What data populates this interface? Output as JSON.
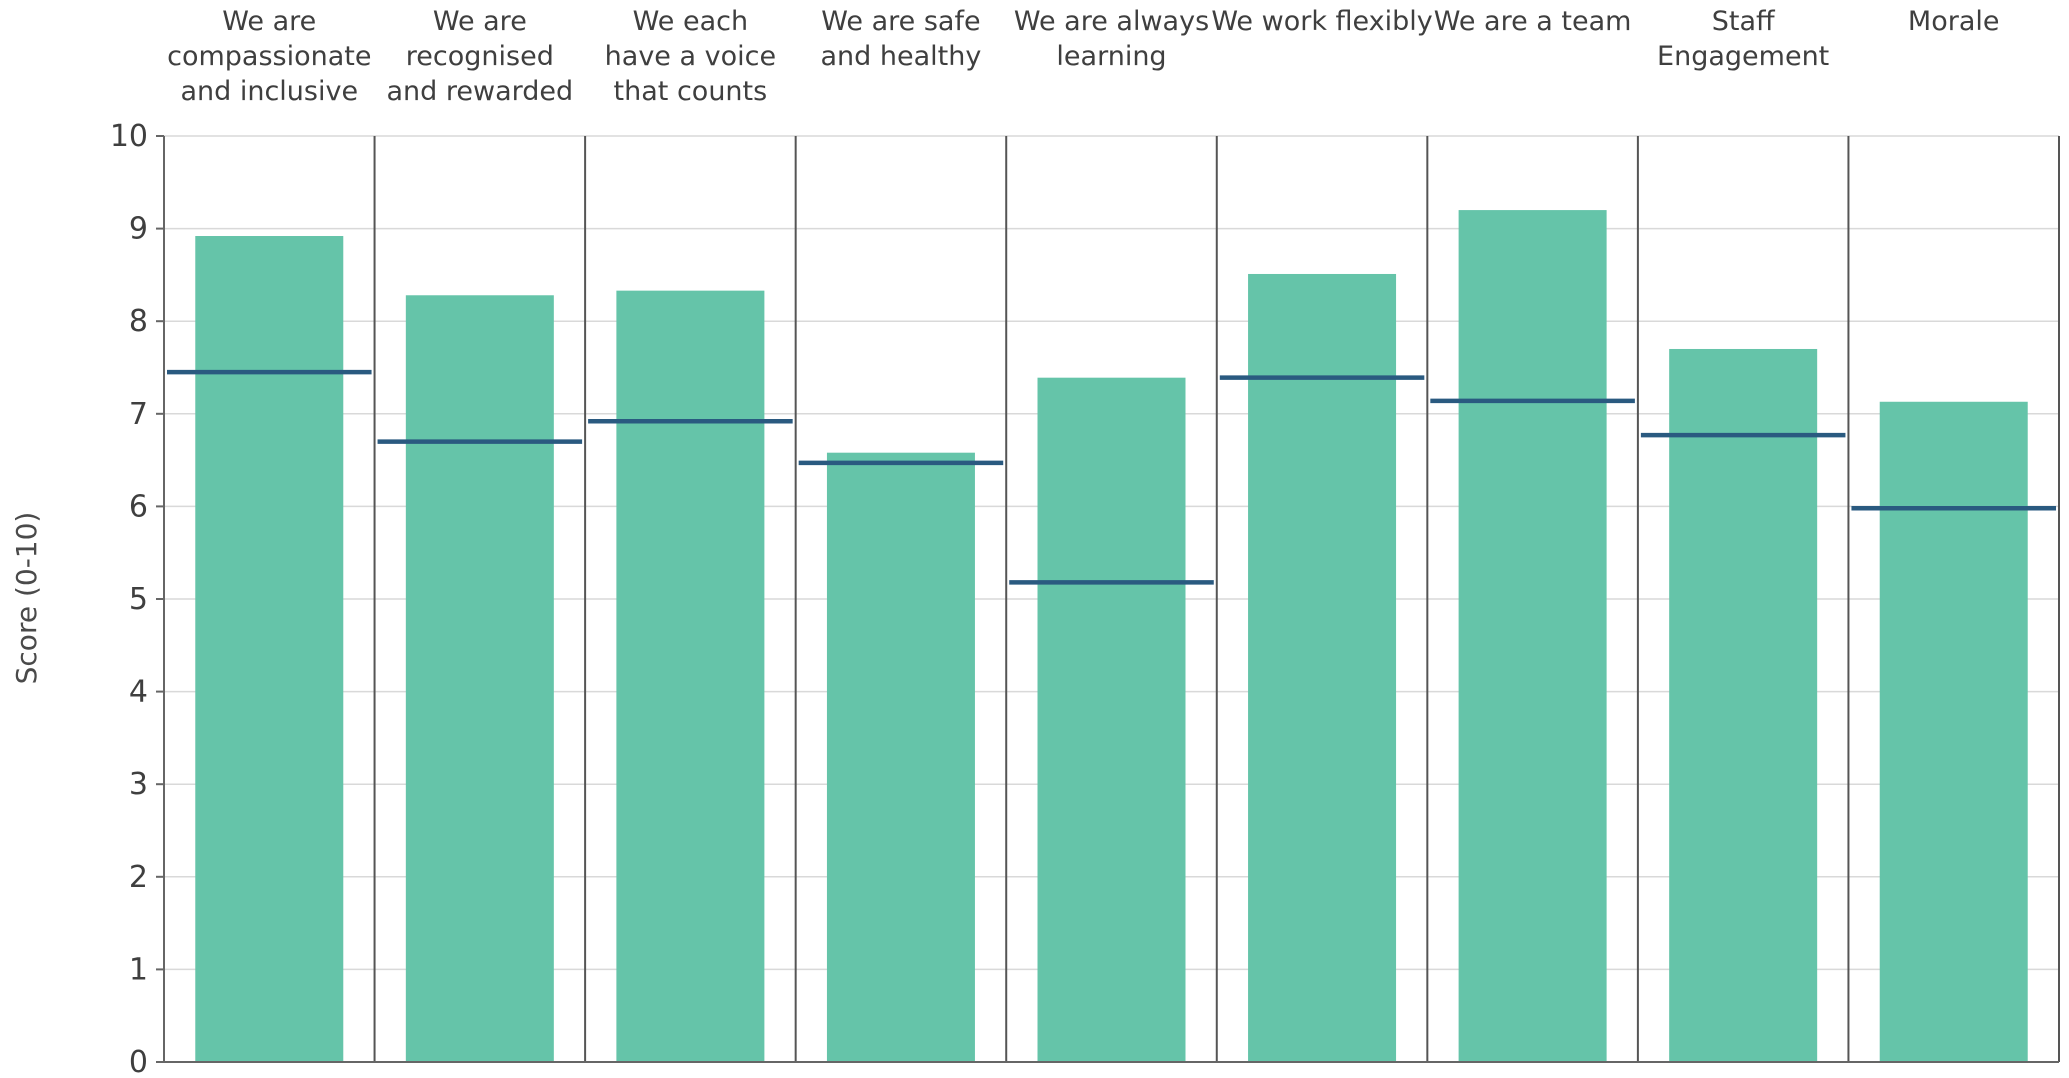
{
  "chart_data": {
    "type": "bar",
    "ylabel": "Score (0-10)",
    "ylim": [
      0,
      10
    ],
    "yticks": [
      0,
      1,
      2,
      3,
      4,
      5,
      6,
      7,
      8,
      9,
      10
    ],
    "grid": true,
    "categories": [
      [
        "We are",
        "compassionate",
        "and inclusive"
      ],
      [
        "We are",
        "recognised",
        "and rewarded"
      ],
      [
        "We each",
        "have a voice",
        "that counts"
      ],
      [
        "We are safe",
        "and healthy"
      ],
      [
        "We are always",
        "learning"
      ],
      [
        "We work flexibly"
      ],
      [
        "We are a team"
      ],
      [
        "Staff",
        "Engagement"
      ],
      [
        "Morale"
      ]
    ],
    "series": [
      {
        "values": [
          8.92,
          8.28,
          8.33,
          6.58,
          7.39,
          8.51,
          9.2,
          7.7,
          7.13
        ]
      },
      {
        "values": [
          7.45,
          6.7,
          6.92,
          6.47,
          5.18,
          7.39,
          7.14,
          6.77,
          5.98
        ]
      }
    ],
    "colors": {
      "bar": "#65c4a9",
      "marker": "#2a5a80",
      "separator": "#555555",
      "grid": "#d9d9d9",
      "axis": "#666666"
    }
  }
}
